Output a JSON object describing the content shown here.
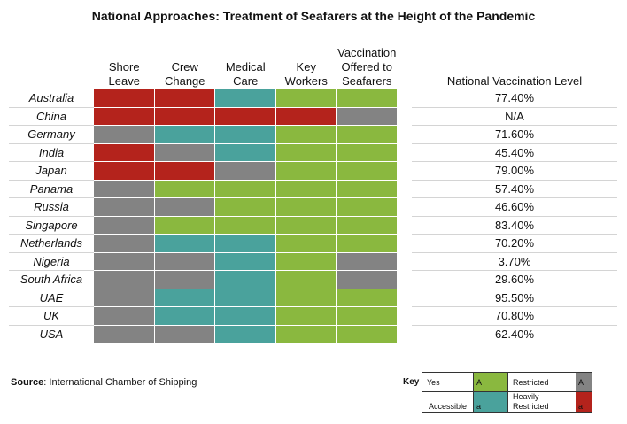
{
  "chart_data": {
    "type": "table",
    "title": "National Approaches: Treatment of Seafarers at the Height of the Pandemic",
    "columns": [
      "Shore Leave",
      "Crew Change",
      "Medical Care",
      "Key Workers",
      "Vaccination Offered to Seafarers",
      "National Vaccination Level"
    ],
    "header_lines": [
      [
        "Shore",
        "Leave"
      ],
      [
        "Crew",
        "Change"
      ],
      [
        "Medical",
        "Care"
      ],
      [
        "Key",
        "Workers"
      ],
      [
        "Vaccination",
        "Offered to",
        "Seafarers"
      ]
    ],
    "vaccination_header": "National Vaccination Level",
    "legend": {
      "yes": "#8ab83f",
      "accessible": "#4aa29c",
      "restricted": "#838383",
      "heavily_restricted": "#b4231c"
    },
    "rows": [
      {
        "country": "Australia",
        "statuses": [
          "heavily_restricted",
          "heavily_restricted",
          "accessible",
          "yes",
          "yes"
        ],
        "vaccination": "77.40%"
      },
      {
        "country": "China",
        "statuses": [
          "heavily_restricted",
          "heavily_restricted",
          "heavily_restricted",
          "heavily_restricted",
          "restricted"
        ],
        "vaccination": "N/A"
      },
      {
        "country": "Germany",
        "statuses": [
          "restricted",
          "accessible",
          "accessible",
          "yes",
          "yes"
        ],
        "vaccination": "71.60%"
      },
      {
        "country": "India",
        "statuses": [
          "heavily_restricted",
          "restricted",
          "accessible",
          "yes",
          "yes"
        ],
        "vaccination": "45.40%"
      },
      {
        "country": "Japan",
        "statuses": [
          "heavily_restricted",
          "heavily_restricted",
          "restricted",
          "yes",
          "yes"
        ],
        "vaccination": "79.00%"
      },
      {
        "country": "Panama",
        "statuses": [
          "restricted",
          "yes",
          "yes",
          "yes",
          "yes"
        ],
        "vaccination": "57.40%"
      },
      {
        "country": "Russia",
        "statuses": [
          "restricted",
          "restricted",
          "yes",
          "yes",
          "yes"
        ],
        "vaccination": "46.60%"
      },
      {
        "country": "Singapore",
        "statuses": [
          "restricted",
          "yes",
          "yes",
          "yes",
          "yes"
        ],
        "vaccination": "83.40%"
      },
      {
        "country": "Netherlands",
        "statuses": [
          "restricted",
          "accessible",
          "accessible",
          "yes",
          "yes"
        ],
        "vaccination": "70.20%"
      },
      {
        "country": "Nigeria",
        "statuses": [
          "restricted",
          "restricted",
          "accessible",
          "yes",
          "restricted"
        ],
        "vaccination": "3.70%"
      },
      {
        "country": "South Africa",
        "statuses": [
          "restricted",
          "restricted",
          "accessible",
          "yes",
          "restricted"
        ],
        "vaccination": "29.60%"
      },
      {
        "country": "UAE",
        "statuses": [
          "restricted",
          "accessible",
          "accessible",
          "yes",
          "yes"
        ],
        "vaccination": "95.50%"
      },
      {
        "country": "UK",
        "statuses": [
          "restricted",
          "accessible",
          "accessible",
          "yes",
          "yes"
        ],
        "vaccination": "70.80%"
      },
      {
        "country": "USA",
        "statuses": [
          "restricted",
          "restricted",
          "accessible",
          "yes",
          "yes"
        ],
        "vaccination": "62.40%"
      }
    ]
  },
  "source": {
    "label": "Source",
    "text": ": International Chamber of Shipping"
  },
  "key": {
    "title": "Key",
    "yes_label": "Yes",
    "yes_code": "A",
    "restricted_label": "Restricted",
    "restricted_code": "A",
    "accessible_label": "Accessible",
    "accessible_code": "a",
    "heavily_label_1": "Heavily",
    "heavily_label_2": "Restricted",
    "heavily_code": "a"
  }
}
